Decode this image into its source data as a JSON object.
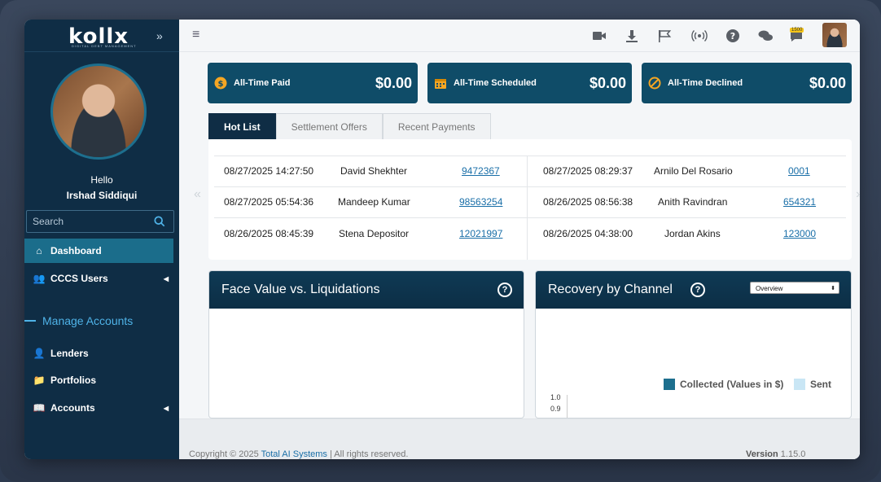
{
  "brand": {
    "logo": "kollx",
    "tagline": "DIGITAL DEBT MANAGEMENT"
  },
  "user": {
    "greeting": "Hello",
    "name": "Irshad Siddiqui"
  },
  "search": {
    "placeholder": "Search"
  },
  "nav": {
    "dashboard": "Dashboard",
    "users": "CCCS Users",
    "section": "Manage Accounts",
    "lenders": "Lenders",
    "portfolios": "Portfolios",
    "accounts": "Accounts"
  },
  "topbar": {
    "badge": "1500"
  },
  "stats": [
    {
      "label": "All-Time Paid",
      "value": "$0.00"
    },
    {
      "label": "All-Time Scheduled",
      "value": "$0.00"
    },
    {
      "label": "All-Time Declined",
      "value": "$0.00"
    }
  ],
  "tabs": [
    "Hot List",
    "Settlement Offers",
    "Recent Payments"
  ],
  "hotlist": [
    {
      "datetime": "08/27/2025 14:27:50",
      "name": "David Shekhter",
      "account": "9472367"
    },
    {
      "datetime": "08/27/2025 05:54:36",
      "name": "Mandeep Kumar",
      "account": "98563254"
    },
    {
      "datetime": "08/26/2025 08:45:39",
      "name": "Stena Depositor",
      "account": "12021997"
    },
    {
      "datetime": "08/27/2025 08:29:37",
      "name": "Arnilo Del Rosario",
      "account": "0001"
    },
    {
      "datetime": "08/26/2025 08:56:38",
      "name": "Anith Ravindran",
      "account": "654321"
    },
    {
      "datetime": "08/26/2025 04:38:00",
      "name": "Jordan Akins",
      "account": "123000"
    }
  ],
  "charts": {
    "face_value": {
      "title": "Face Value vs. Liquidations"
    },
    "recovery": {
      "title": "Recovery by Channel",
      "dropdown": "Overview",
      "legend_collected": "Collected (Values in $)",
      "legend_sent": "Sent",
      "ytick_1": "1.0",
      "ytick_2": "0.9",
      "color_collected": "#1d6f8e",
      "color_sent": "#c9e6f5"
    }
  },
  "footer": {
    "copyright_prefix": "Copyright © 2025 ",
    "company": "Total AI Systems",
    "copyright_suffix": " | All rights reserved.",
    "version_label": "Version",
    "version": " 1.15.0"
  }
}
